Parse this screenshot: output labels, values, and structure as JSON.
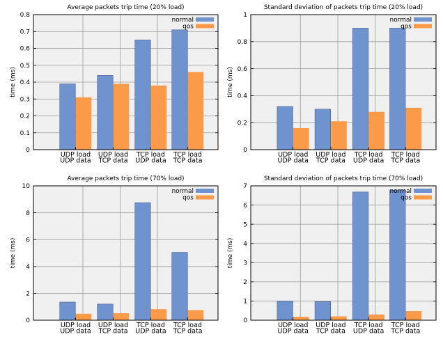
{
  "colors": {
    "normal": "#6f93cf",
    "qos": "#fb9a48",
    "plot_bg": "#f0f0f0",
    "grid": "#9a9a9a"
  },
  "chart_data": [
    {
      "type": "bar",
      "title": "Average packets trip time (20% load)",
      "ylabel": "time (ms)",
      "ylim": [
        0,
        0.8
      ],
      "yticks": [
        0,
        0.1,
        0.2,
        0.3,
        0.4,
        0.5,
        0.6,
        0.7,
        0.8
      ],
      "ytick_labels": [
        "0",
        "0.1",
        "0.2",
        "0.3",
        "0.4",
        "0.5",
        "0.6",
        "0.7",
        "0.8"
      ],
      "categories": [
        [
          "UDP load",
          "UDP data"
        ],
        [
          "UDP load",
          "TCP data"
        ],
        [
          "TCP load",
          "UDP data"
        ],
        [
          "TCP load",
          "TCP data"
        ]
      ],
      "grid": true,
      "legend": "top-right",
      "series": [
        {
          "name": "normal",
          "values": [
            0.39,
            0.44,
            0.65,
            0.71
          ]
        },
        {
          "name": "qos",
          "values": [
            0.31,
            0.39,
            0.38,
            0.46
          ]
        }
      ]
    },
    {
      "type": "bar",
      "title": "Standard deviation of packets trip time (20% load)",
      "ylabel": "time (ms)",
      "ylim": [
        0,
        1
      ],
      "yticks": [
        0,
        0.2,
        0.4,
        0.6,
        0.8,
        1
      ],
      "ytick_labels": [
        "0",
        "0.2",
        "0.4",
        "0.6",
        "0.8",
        "1"
      ],
      "categories": [
        [
          "UDP load",
          "UDP data"
        ],
        [
          "UDP load",
          "TCP data"
        ],
        [
          "TCP load",
          "UDP data"
        ],
        [
          "TCP load",
          "TCP data"
        ]
      ],
      "grid": true,
      "legend": "top-right",
      "series": [
        {
          "name": "normal",
          "values": [
            0.32,
            0.3,
            0.9,
            0.9
          ]
        },
        {
          "name": "qos",
          "values": [
            0.16,
            0.21,
            0.28,
            0.31
          ]
        }
      ]
    },
    {
      "type": "bar",
      "title": "Average packets trip time (70% load)",
      "ylabel": "time (ms)",
      "ylim": [
        0,
        10
      ],
      "yticks": [
        0,
        2,
        4,
        6,
        8,
        10
      ],
      "ytick_labels": [
        "0",
        "2",
        "4",
        "6",
        "8",
        "10"
      ],
      "categories": [
        [
          "UDP load",
          "UDP data"
        ],
        [
          "UDP load",
          "TCP data"
        ],
        [
          "TCP load",
          "UDP data"
        ],
        [
          "TCP load",
          "TCP data"
        ]
      ],
      "grid": true,
      "legend": "top-right",
      "series": [
        {
          "name": "normal",
          "values": [
            1.35,
            1.2,
            8.75,
            5.05
          ]
        },
        {
          "name": "qos",
          "values": [
            0.48,
            0.52,
            0.82,
            0.75
          ]
        }
      ]
    },
    {
      "type": "bar",
      "title": "Standard deviation of packets trip time (70% load)",
      "ylabel": "time (ms)",
      "ylim": [
        0,
        7
      ],
      "yticks": [
        0,
        1,
        2,
        3,
        4,
        5,
        6,
        7
      ],
      "ytick_labels": [
        "0",
        "1",
        "2",
        "3",
        "4",
        "5",
        "6",
        "7"
      ],
      "categories": [
        [
          "UDP load",
          "UDP data"
        ],
        [
          "UDP load",
          "TCP data"
        ],
        [
          "TCP load",
          "UDP data"
        ],
        [
          "TCP load",
          "TCP data"
        ]
      ],
      "grid": true,
      "legend": "top-right",
      "series": [
        {
          "name": "normal",
          "values": [
            1.0,
            0.97,
            6.68,
            6.78
          ]
        },
        {
          "name": "qos",
          "values": [
            0.18,
            0.2,
            0.3,
            0.47
          ]
        }
      ]
    }
  ]
}
